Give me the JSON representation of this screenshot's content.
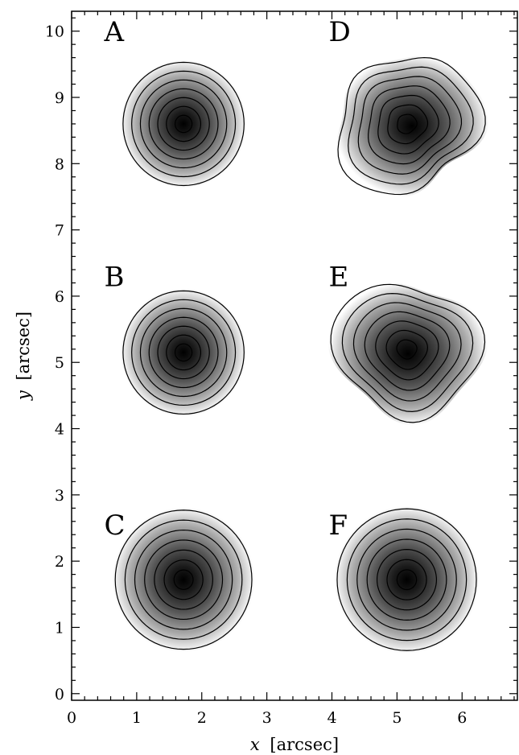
{
  "chart_data": {
    "type": "contour",
    "xlabel_var": "x",
    "xlabel_unit": "[arcsec]",
    "ylabel_var": "y",
    "ylabel_unit": "[arcsec]",
    "xlim": [
      0,
      6.85
    ],
    "ylim": [
      -0.1,
      10.3
    ],
    "x_ticks": [
      0,
      1,
      2,
      3,
      4,
      5,
      6
    ],
    "y_ticks": [
      0,
      1,
      2,
      3,
      4,
      5,
      6,
      7,
      8,
      9,
      10
    ],
    "x_minor_step": 0.2,
    "y_minor_step": 0.2,
    "colormap": "grayscale (white to black with increasing intensity)",
    "panels": [
      {
        "label": "A",
        "label_pos": [
          0.5,
          9.85
        ],
        "center": [
          1.72,
          8.6
        ],
        "outer_radius": 0.93,
        "levels": 7,
        "shape": "circular"
      },
      {
        "label": "B",
        "label_pos": [
          0.5,
          6.15
        ],
        "center": [
          1.72,
          5.15
        ],
        "outer_radius": 0.93,
        "levels": 7,
        "shape": "circular"
      },
      {
        "label": "C",
        "label_pos": [
          0.5,
          2.4
        ],
        "center": [
          1.72,
          1.72
        ],
        "outer_radius": 1.05,
        "levels": 7,
        "shape": "circular"
      },
      {
        "label": "D",
        "label_pos": [
          3.95,
          9.85
        ],
        "center": [
          5.15,
          8.6
        ],
        "outer_radius": 1.05,
        "levels": 7,
        "shape": "irregular"
      },
      {
        "label": "E",
        "label_pos": [
          3.95,
          6.15
        ],
        "center": [
          5.15,
          5.2
        ],
        "outer_radius": 1.05,
        "levels": 7,
        "shape": "irregular"
      },
      {
        "label": "F",
        "label_pos": [
          3.95,
          2.4
        ],
        "center": [
          5.15,
          1.72
        ],
        "outer_radius": 1.07,
        "levels": 7,
        "shape": "circular"
      }
    ]
  }
}
